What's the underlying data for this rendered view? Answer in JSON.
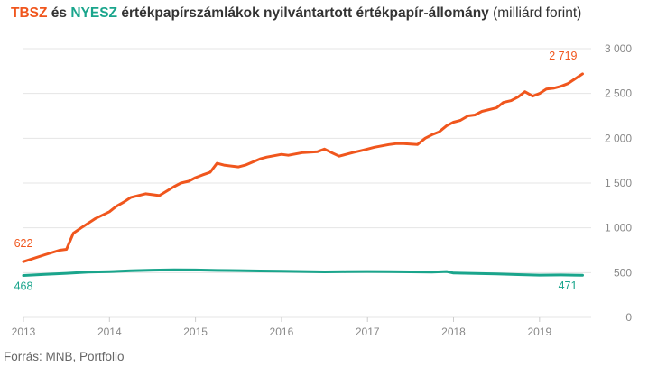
{
  "title": {
    "series1": "TBSZ",
    "and": "és",
    "series2": "NYESZ",
    "rest": "értékpapírszámlákok nyilvántartott értékpapír-állomány",
    "unit": "(milliárd forint)"
  },
  "source": "Forrás: MNB, Portfolio",
  "colors": {
    "tbsz": "#f0561d",
    "nyesz": "#1aa58c",
    "grid": "#e5e5e5",
    "tick": "#888888"
  },
  "chart_data": {
    "type": "line",
    "x_ticks": [
      "2013",
      "2014",
      "2015",
      "2016",
      "2017",
      "2018",
      "2019"
    ],
    "y_ticks": [
      "0",
      "500",
      "1 000",
      "1 500",
      "2 000",
      "2 500",
      "3 000"
    ],
    "ylim": [
      0,
      3000
    ],
    "xlim": [
      2013.0,
      2019.6
    ],
    "grid": true,
    "annotations": [
      {
        "text": "622",
        "series": "TBSZ",
        "position": "start"
      },
      {
        "text": "2 719",
        "series": "TBSZ",
        "position": "end"
      },
      {
        "text": "468",
        "series": "NYESZ",
        "position": "start"
      },
      {
        "text": "471",
        "series": "NYESZ",
        "position": "end"
      }
    ],
    "series": [
      {
        "name": "TBSZ",
        "color": "#f0561d",
        "x": [
          2013.0,
          2013.25,
          2013.42,
          2013.5,
          2013.58,
          2013.67,
          2013.83,
          2014.0,
          2014.08,
          2014.17,
          2014.25,
          2014.42,
          2014.58,
          2014.75,
          2014.83,
          2014.92,
          2015.0,
          2015.08,
          2015.17,
          2015.25,
          2015.33,
          2015.5,
          2015.58,
          2015.75,
          2015.83,
          2016.0,
          2016.08,
          2016.25,
          2016.42,
          2016.5,
          2016.58,
          2016.67,
          2016.75,
          2016.83,
          2016.92,
          2017.0,
          2017.08,
          2017.25,
          2017.33,
          2017.42,
          2017.58,
          2017.67,
          2017.75,
          2017.83,
          2017.92,
          2018.0,
          2018.08,
          2018.17,
          2018.25,
          2018.33,
          2018.5,
          2018.58,
          2018.67,
          2018.75,
          2018.83,
          2018.92,
          2019.0,
          2019.08,
          2019.17,
          2019.25,
          2019.33,
          2019.5
        ],
        "y": [
          622,
          700,
          750,
          760,
          940,
          1000,
          1100,
          1180,
          1240,
          1290,
          1340,
          1380,
          1360,
          1460,
          1500,
          1520,
          1560,
          1590,
          1620,
          1720,
          1700,
          1680,
          1700,
          1770,
          1790,
          1820,
          1810,
          1840,
          1850,
          1880,
          1840,
          1800,
          1820,
          1840,
          1860,
          1880,
          1900,
          1930,
          1940,
          1940,
          1930,
          2000,
          2040,
          2070,
          2140,
          2180,
          2200,
          2250,
          2260,
          2300,
          2340,
          2400,
          2420,
          2460,
          2520,
          2470,
          2500,
          2550,
          2560,
          2580,
          2610,
          2719
        ]
      },
      {
        "name": "NYESZ",
        "color": "#1aa58c",
        "x": [
          2013.0,
          2013.25,
          2013.5,
          2013.75,
          2014.0,
          2014.25,
          2014.5,
          2014.75,
          2015.0,
          2015.25,
          2015.5,
          2015.75,
          2016.0,
          2016.25,
          2016.5,
          2016.75,
          2017.0,
          2017.25,
          2017.5,
          2017.75,
          2017.92,
          2018.0,
          2018.25,
          2018.5,
          2018.75,
          2019.0,
          2019.25,
          2019.5
        ],
        "y": [
          468,
          480,
          492,
          505,
          510,
          520,
          528,
          532,
          530,
          525,
          522,
          518,
          515,
          512,
          508,
          510,
          512,
          510,
          508,
          505,
          512,
          495,
          490,
          485,
          478,
          472,
          474,
          471
        ]
      }
    ]
  }
}
